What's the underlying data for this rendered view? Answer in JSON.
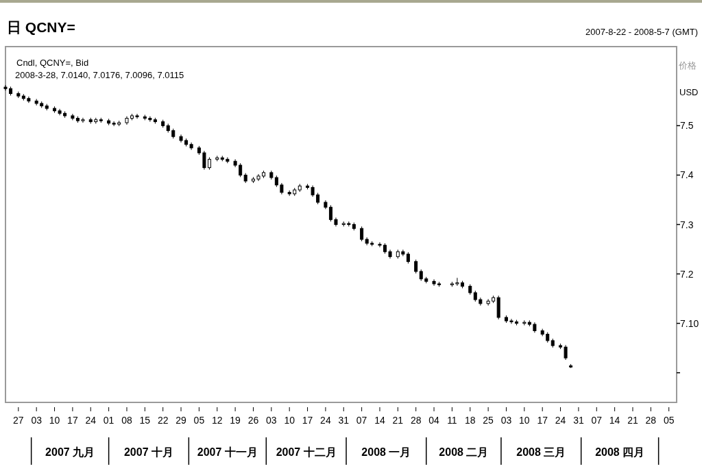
{
  "chart_data": {
    "type": "candlestick",
    "title": "日 QCNY=",
    "subtitle": "2007-8-22 - 2008-5-7 (GMT)",
    "ylabel": "价格",
    "annotations": [
      "Cndl, QCNY=, Bid",
      "2008-3-28, 7.0140, 7.0176, 7.0096, 7.0115",
      "USD",
      "2007 九月",
      "2007 十月",
      "2007 十一月",
      "2007 十二月",
      "2008 一月",
      "2008 二月",
      "2008 三月",
      "2008 四月"
    ],
    "color": "#000000",
    "xlim": [
      "2007-08-22",
      "2008-05-08"
    ],
    "ylim": [
      6.94,
      7.66
    ],
    "yticks": [
      {
        "value": 7.0,
        "label": null
      },
      {
        "value": 7.1,
        "label": "7.10"
      },
      7.2,
      7.3,
      7.4,
      7.5
    ],
    "xticks": [
      {
        "value": "2007-08-27",
        "label": "27"
      },
      {
        "value": "2007-09-03",
        "label": "03"
      },
      {
        "value": "2007-09-10",
        "label": "10"
      },
      {
        "value": "2007-09-17",
        "label": "17"
      },
      {
        "value": "2007-09-24",
        "label": "24"
      },
      {
        "value": "2007-10-01",
        "label": "01"
      },
      {
        "value": "2007-10-08",
        "label": "08"
      },
      {
        "value": "2007-10-15",
        "label": "15"
      },
      {
        "value": "2007-10-22",
        "label": "22"
      },
      {
        "value": "2007-10-29",
        "label": "29"
      },
      {
        "value": "2007-11-05",
        "label": "05"
      },
      {
        "value": "2007-11-12",
        "label": "12"
      },
      {
        "value": "2007-11-19",
        "label": "19"
      },
      {
        "value": "2007-11-26",
        "label": "26"
      },
      {
        "value": "2007-12-03",
        "label": "03"
      },
      {
        "value": "2007-12-10",
        "label": "10"
      },
      {
        "value": "2007-12-17",
        "label": "17"
      },
      {
        "value": "2007-12-24",
        "label": "24"
      },
      {
        "value": "2007-12-31",
        "label": "31"
      },
      {
        "value": "2008-01-07",
        "label": "07"
      },
      {
        "value": "2008-01-14",
        "label": "14"
      },
      {
        "value": "2008-01-21",
        "label": "21"
      },
      {
        "value": "2008-01-28",
        "label": "28"
      },
      {
        "value": "2008-02-04",
        "label": "04"
      },
      {
        "value": "2008-02-11",
        "label": "11"
      },
      {
        "value": "2008-02-18",
        "label": "18"
      },
      {
        "value": "2008-02-25",
        "label": "25"
      },
      {
        "value": "2008-03-03",
        "label": "03"
      },
      {
        "value": "2008-03-10",
        "label": "10"
      },
      {
        "value": "2008-03-17",
        "label": "17"
      },
      {
        "value": "2008-03-24",
        "label": "24"
      },
      {
        "value": "2008-03-31",
        "label": "31"
      },
      {
        "value": "2008-04-07",
        "label": "07"
      },
      {
        "value": "2008-04-14",
        "label": "14"
      },
      {
        "value": "2008-04-21",
        "label": "21"
      },
      {
        "value": "2008-04-28",
        "label": "28"
      },
      {
        "value": "2008-05-05",
        "label": "05"
      }
    ],
    "x": [
      "2007-08-22",
      "2007-08-24",
      "2007-08-27",
      "2007-08-29",
      "2007-08-31",
      "2007-09-03",
      "2007-09-05",
      "2007-09-07",
      "2007-09-10",
      "2007-09-12",
      "2007-09-14",
      "2007-09-17",
      "2007-09-19",
      "2007-09-21",
      "2007-09-24",
      "2007-09-26",
      "2007-09-28",
      "2007-10-01",
      "2007-10-03",
      "2007-10-05",
      "2007-10-08",
      "2007-10-10",
      "2007-10-12",
      "2007-10-15",
      "2007-10-17",
      "2007-10-19",
      "2007-10-22",
      "2007-10-24",
      "2007-10-26",
      "2007-10-29",
      "2007-10-31",
      "2007-11-02",
      "2007-11-05",
      "2007-11-07",
      "2007-11-09",
      "2007-11-12",
      "2007-11-14",
      "2007-11-16",
      "2007-11-19",
      "2007-11-21",
      "2007-11-23",
      "2007-11-26",
      "2007-11-28",
      "2007-11-30",
      "2007-12-03",
      "2007-12-05",
      "2007-12-07",
      "2007-12-10",
      "2007-12-12",
      "2007-12-14",
      "2007-12-17",
      "2007-12-19",
      "2007-12-21",
      "2007-12-24",
      "2007-12-26",
      "2007-12-28",
      "2007-12-31",
      "2008-01-02",
      "2008-01-04",
      "2008-01-07",
      "2008-01-09",
      "2008-01-11",
      "2008-01-14",
      "2008-01-16",
      "2008-01-18",
      "2008-01-21",
      "2008-01-23",
      "2008-01-25",
      "2008-01-28",
      "2008-01-30",
      "2008-02-01",
      "2008-02-04",
      "2008-02-06",
      "2008-02-11",
      "2008-02-13",
      "2008-02-15",
      "2008-02-18",
      "2008-02-20",
      "2008-02-22",
      "2008-02-25",
      "2008-02-27",
      "2008-02-29",
      "2008-03-03",
      "2008-03-05",
      "2008-03-07",
      "2008-03-10",
      "2008-03-12",
      "2008-03-14",
      "2008-03-17",
      "2008-03-19",
      "2008-03-21",
      "2008-03-24",
      "2008-03-26",
      "2008-03-28"
    ],
    "ohlc": [
      [
        7.578,
        7.582,
        7.571,
        7.575
      ],
      [
        7.575,
        7.579,
        7.561,
        7.565
      ],
      [
        7.565,
        7.569,
        7.556,
        7.56
      ],
      [
        7.56,
        7.564,
        7.551,
        7.555
      ],
      [
        7.555,
        7.559,
        7.546,
        7.55
      ],
      [
        7.55,
        7.554,
        7.541,
        7.545
      ],
      [
        7.545,
        7.549,
        7.536,
        7.54
      ],
      [
        7.54,
        7.544,
        7.531,
        7.535
      ],
      [
        7.535,
        7.539,
        7.526,
        7.53
      ],
      [
        7.53,
        7.534,
        7.521,
        7.525
      ],
      [
        7.525,
        7.529,
        7.516,
        7.52
      ],
      [
        7.52,
        7.524,
        7.511,
        7.515
      ],
      [
        7.515,
        7.519,
        7.506,
        7.51
      ],
      [
        7.51,
        7.516,
        7.506,
        7.512
      ],
      [
        7.512,
        7.516,
        7.504,
        7.508
      ],
      [
        7.508,
        7.516,
        7.504,
        7.512
      ],
      [
        7.512,
        7.516,
        7.506,
        7.51
      ],
      [
        7.51,
        7.514,
        7.501,
        7.505
      ],
      [
        7.505,
        7.509,
        7.499,
        7.503
      ],
      [
        7.503,
        7.51,
        7.499,
        7.506
      ],
      [
        7.506,
        7.519,
        7.502,
        7.515
      ],
      [
        7.515,
        7.524,
        7.511,
        7.52
      ],
      [
        7.52,
        7.524,
        7.514,
        7.518
      ],
      [
        7.518,
        7.522,
        7.511,
        7.515
      ],
      [
        7.515,
        7.519,
        7.508,
        7.512
      ],
      [
        7.512,
        7.516,
        7.504,
        7.508
      ],
      [
        7.508,
        7.512,
        7.496,
        7.5
      ],
      [
        7.5,
        7.504,
        7.486,
        7.49
      ],
      [
        7.49,
        7.494,
        7.474,
        7.478
      ],
      [
        7.478,
        7.482,
        7.466,
        7.47
      ],
      [
        7.47,
        7.474,
        7.458,
        7.462
      ],
      [
        7.462,
        7.466,
        7.451,
        7.455
      ],
      [
        7.455,
        7.459,
        7.441,
        7.445
      ],
      [
        7.445,
        7.449,
        7.411,
        7.415
      ],
      [
        7.415,
        7.436,
        7.411,
        7.432
      ],
      [
        7.432,
        7.439,
        7.428,
        7.435
      ],
      [
        7.435,
        7.439,
        7.428,
        7.432
      ],
      [
        7.432,
        7.436,
        7.424,
        7.428
      ],
      [
        7.428,
        7.432,
        7.416,
        7.42
      ],
      [
        7.42,
        7.424,
        7.396,
        7.4
      ],
      [
        7.4,
        7.404,
        7.384,
        7.388
      ],
      [
        7.388,
        7.396,
        7.384,
        7.392
      ],
      [
        7.392,
        7.402,
        7.388,
        7.398
      ],
      [
        7.398,
        7.409,
        7.394,
        7.405
      ],
      [
        7.405,
        7.409,
        7.391,
        7.395
      ],
      [
        7.395,
        7.399,
        7.376,
        7.38
      ],
      [
        7.38,
        7.384,
        7.361,
        7.365
      ],
      [
        7.365,
        7.369,
        7.358,
        7.362
      ],
      [
        7.362,
        7.374,
        7.358,
        7.37
      ],
      [
        7.37,
        7.382,
        7.366,
        7.378
      ],
      [
        7.378,
        7.382,
        7.371,
        7.375
      ],
      [
        7.375,
        7.379,
        7.356,
        7.36
      ],
      [
        7.36,
        7.364,
        7.341,
        7.345
      ],
      [
        7.345,
        7.349,
        7.331,
        7.335
      ],
      [
        7.335,
        7.339,
        7.306,
        7.31
      ],
      [
        7.31,
        7.314,
        7.296,
        7.3
      ],
      [
        7.3,
        7.306,
        7.296,
        7.302
      ],
      [
        7.302,
        7.306,
        7.296,
        7.3
      ],
      [
        7.3,
        7.304,
        7.288,
        7.292
      ],
      [
        7.292,
        7.296,
        7.266,
        7.27
      ],
      [
        7.27,
        7.274,
        7.258,
        7.262
      ],
      [
        7.262,
        7.266,
        7.256,
        7.26
      ],
      [
        7.26,
        7.264,
        7.254,
        7.258
      ],
      [
        7.258,
        7.262,
        7.241,
        7.245
      ],
      [
        7.245,
        7.249,
        7.231,
        7.235
      ],
      [
        7.235,
        7.249,
        7.231,
        7.245
      ],
      [
        7.245,
        7.249,
        7.236,
        7.24
      ],
      [
        7.24,
        7.244,
        7.221,
        7.225
      ],
      [
        7.225,
        7.229,
        7.201,
        7.205
      ],
      [
        7.205,
        7.209,
        7.186,
        7.19
      ],
      [
        7.19,
        7.194,
        7.181,
        7.185
      ],
      [
        7.185,
        7.189,
        7.176,
        7.18
      ],
      [
        7.18,
        7.184,
        7.174,
        7.178
      ],
      [
        7.178,
        7.184,
        7.174,
        7.18
      ],
      [
        7.18,
        7.192,
        7.176,
        7.182
      ],
      [
        7.182,
        7.186,
        7.171,
        7.175
      ],
      [
        7.175,
        7.179,
        7.158,
        7.162
      ],
      [
        7.162,
        7.166,
        7.144,
        7.148
      ],
      [
        7.148,
        7.152,
        7.136,
        7.14
      ],
      [
        7.14,
        7.149,
        7.136,
        7.145
      ],
      [
        7.145,
        7.156,
        7.141,
        7.152
      ],
      [
        7.152,
        7.156,
        7.108,
        7.112
      ],
      [
        7.112,
        7.116,
        7.101,
        7.105
      ],
      [
        7.105,
        7.109,
        7.099,
        7.103
      ],
      [
        7.103,
        7.107,
        7.096,
        7.1
      ],
      [
        7.1,
        7.106,
        7.096,
        7.102
      ],
      [
        7.102,
        7.106,
        7.094,
        7.098
      ],
      [
        7.098,
        7.102,
        7.081,
        7.085
      ],
      [
        7.085,
        7.089,
        7.074,
        7.078
      ],
      [
        7.078,
        7.082,
        7.061,
        7.065
      ],
      [
        7.065,
        7.069,
        7.051,
        7.055
      ],
      [
        7.055,
        7.059,
        7.048,
        7.052
      ],
      [
        7.052,
        7.056,
        7.026,
        7.03
      ],
      [
        7.014,
        7.0176,
        7.0096,
        7.0115
      ]
    ]
  }
}
